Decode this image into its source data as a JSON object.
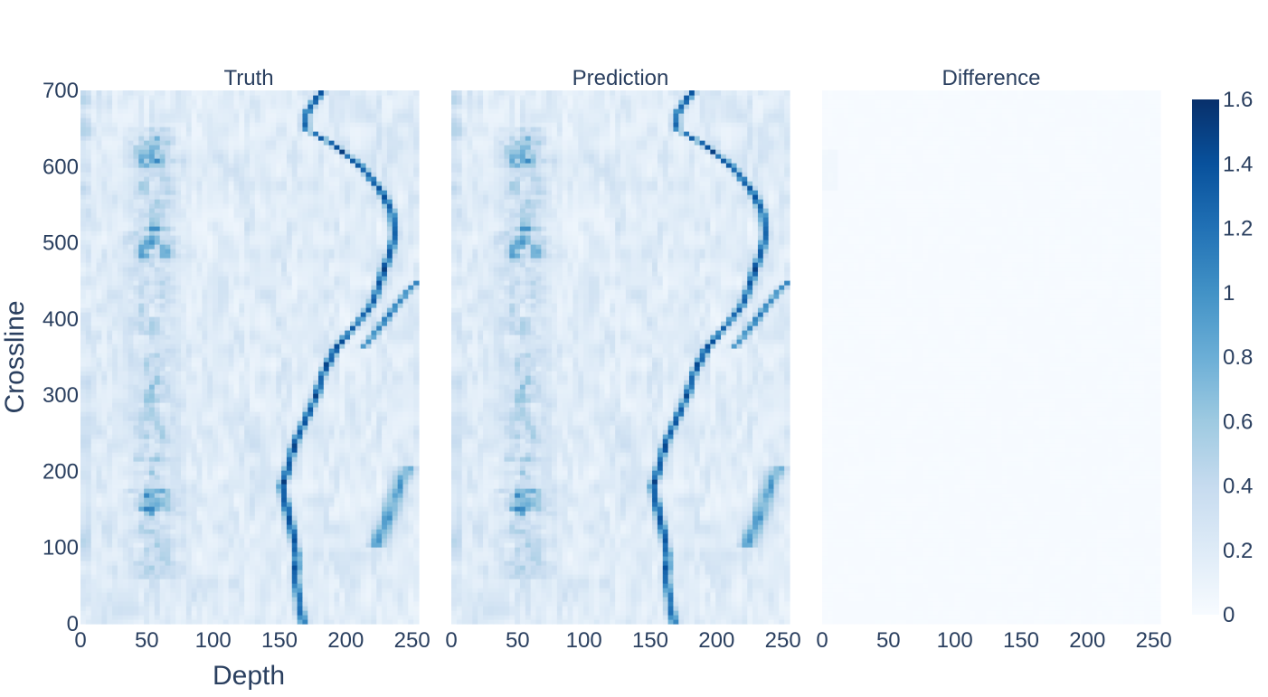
{
  "chart_data": {
    "type": "heatmap",
    "colorscale": "Blues",
    "colorscale_stops": [
      "#f7fbff",
      "#deebf7",
      "#c6dbef",
      "#9ecae1",
      "#6baed6",
      "#4292c6",
      "#2171b5",
      "#08519c",
      "#08306b"
    ],
    "zlim": [
      0,
      1.6
    ],
    "colorbar_ticks": [
      "0",
      "0.2",
      "0.4",
      "0.6",
      "0.8",
      "1",
      "1.2",
      "1.4",
      "1.6"
    ],
    "colorbar_values": [
      0,
      0.2,
      0.4,
      0.6,
      0.8,
      1.0,
      1.2,
      1.4,
      1.6
    ],
    "xlabel": "Depth",
    "ylabel": "Crossline",
    "xlim": [
      0,
      255
    ],
    "ylim": [
      0,
      700
    ],
    "x_ticks": [
      "0",
      "50",
      "100",
      "150",
      "200",
      "250"
    ],
    "x_tick_values": [
      0,
      50,
      100,
      150,
      200,
      250
    ],
    "y_ticks": [
      "0",
      "100",
      "200",
      "300",
      "400",
      "500",
      "600",
      "700"
    ],
    "y_tick_values": [
      0,
      100,
      200,
      300,
      400,
      500,
      600,
      700
    ],
    "panels": [
      {
        "title": "Truth"
      },
      {
        "title": "Prediction"
      },
      {
        "title": "Difference"
      }
    ],
    "features": {
      "main_horizon": [
        [
          0,
          168
        ],
        [
          30,
          165
        ],
        [
          60,
          162
        ],
        [
          90,
          163
        ],
        [
          120,
          160
        ],
        [
          150,
          156
        ],
        [
          180,
          152
        ],
        [
          210,
          157
        ],
        [
          240,
          162
        ],
        [
          270,
          170
        ],
        [
          300,
          178
        ],
        [
          330,
          183
        ],
        [
          360,
          192
        ],
        [
          390,
          206
        ],
        [
          420,
          220
        ],
        [
          450,
          226
        ],
        [
          480,
          232
        ],
        [
          510,
          237
        ],
        [
          540,
          235
        ],
        [
          570,
          226
        ],
        [
          600,
          212
        ],
        [
          630,
          190
        ],
        [
          650,
          170
        ],
        [
          670,
          170
        ],
        [
          690,
          178
        ],
        [
          700,
          183
        ]
      ],
      "upper_branch": [
        [
          360,
          212
        ],
        [
          400,
          230
        ],
        [
          440,
          248
        ],
        [
          450,
          255
        ]
      ],
      "right_band": [
        [
          100,
          222
        ],
        [
          140,
          232
        ],
        [
          180,
          240
        ],
        [
          210,
          248
        ]
      ],
      "left_band_center_depth": 55,
      "left_band_range": [
        60,
        650
      ],
      "left_band_strong": [
        [
          140,
          180
        ],
        [
          480,
          520
        ],
        [
          600,
          640
        ]
      ]
    }
  }
}
